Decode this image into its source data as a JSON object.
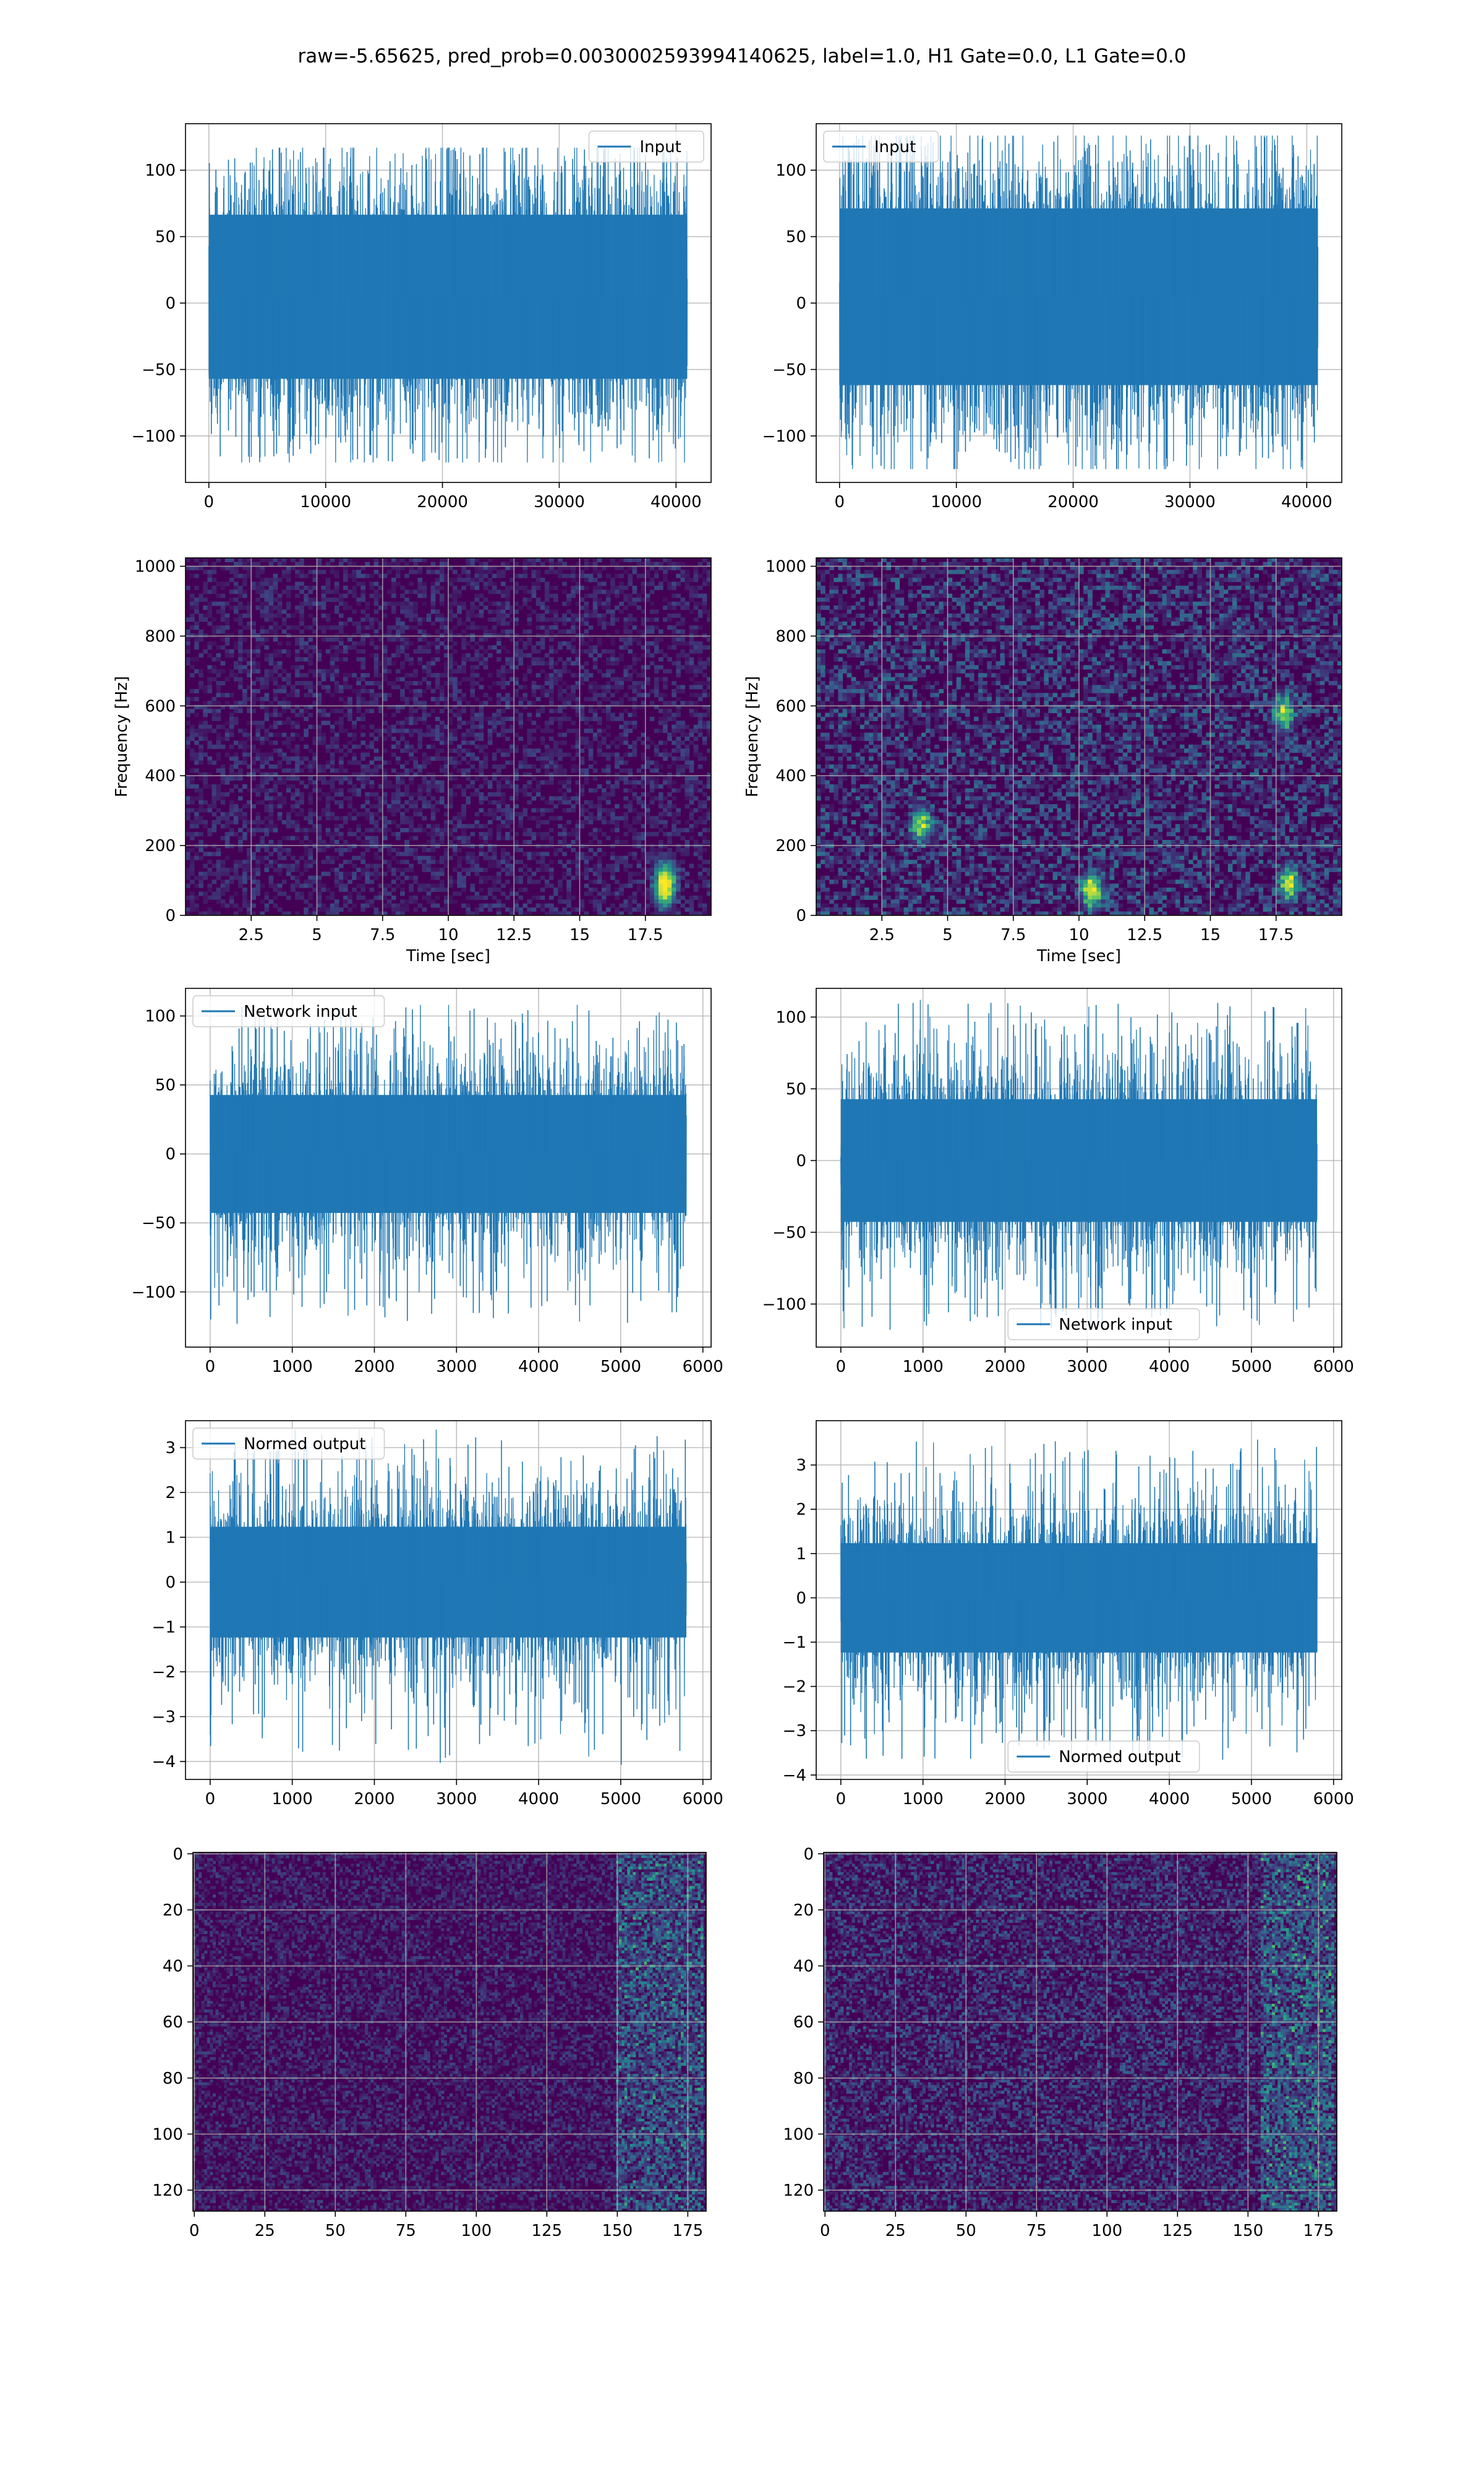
{
  "figure": {
    "title": "raw=-5.65625, pred_prob=0.0030002593994140625, label=1.0, H1 Gate=0.0, L1 Gate=0.0"
  },
  "colors": {
    "line": "#1f77b4",
    "grid": "#b0b0b0",
    "viridis_low": "#440154",
    "viridis_mid": "#21918c",
    "viridis_high": "#fde725"
  },
  "chart_data": [
    {
      "id": "input-h1",
      "type": "line",
      "row": 0,
      "col": 0,
      "legend": "Input",
      "legend_loc": "upper right",
      "xlim": [
        -2000,
        43000
      ],
      "ylim": [
        -135,
        135
      ],
      "xticks": [
        0,
        10000,
        20000,
        30000,
        40000
      ],
      "yticks": [
        -100,
        -50,
        0,
        50,
        100
      ],
      "n_points": 40960,
      "band": [
        -60,
        70
      ],
      "extremes": [
        -120,
        117
      ],
      "grid": true,
      "xlabel": "",
      "ylabel": ""
    },
    {
      "id": "input-l1",
      "type": "line",
      "row": 0,
      "col": 1,
      "legend": "Input",
      "legend_loc": "upper left",
      "xlim": [
        -2000,
        43000
      ],
      "ylim": [
        -135,
        135
      ],
      "xticks": [
        0,
        10000,
        20000,
        30000,
        40000
      ],
      "yticks": [
        -100,
        -50,
        0,
        50,
        100
      ],
      "n_points": 40960,
      "band": [
        -65,
        75
      ],
      "extremes": [
        -125,
        126
      ],
      "grid": true,
      "xlabel": "",
      "ylabel": ""
    },
    {
      "id": "spectrogram-h1",
      "type": "heatmap",
      "row": 1,
      "col": 0,
      "xlim": [
        0,
        20
      ],
      "ylim": [
        0,
        1024
      ],
      "xticks": [
        2.5,
        5.0,
        7.5,
        10.0,
        12.5,
        15.0,
        17.5
      ],
      "yticks": [
        0,
        200,
        400,
        600,
        800,
        1000
      ],
      "xlabel": "Time [sec]",
      "ylabel": "Frequency [Hz]",
      "grid": true,
      "colormap": "viridis",
      "intensity": 0.22,
      "hotspots": [
        {
          "x": 18.2,
          "y": 70,
          "v": 0.8
        },
        {
          "x": 18.3,
          "y": 110,
          "v": 0.6
        }
      ]
    },
    {
      "id": "spectrogram-l1",
      "type": "heatmap",
      "row": 1,
      "col": 1,
      "xlim": [
        0,
        20
      ],
      "ylim": [
        0,
        1024
      ],
      "xticks": [
        2.5,
        5.0,
        7.5,
        10.0,
        12.5,
        15.0,
        17.5
      ],
      "yticks": [
        0,
        200,
        400,
        600,
        800,
        1000
      ],
      "xlabel": "Time [sec]",
      "ylabel": "Frequency [Hz]",
      "grid": true,
      "colormap": "viridis",
      "intensity": 0.38,
      "hotspots": [
        {
          "x": 18.0,
          "y": 90,
          "v": 0.8
        },
        {
          "x": 10.5,
          "y": 70,
          "v": 0.9
        },
        {
          "x": 4.0,
          "y": 260,
          "v": 0.7
        },
        {
          "x": 17.8,
          "y": 580,
          "v": 0.7
        }
      ]
    },
    {
      "id": "network-input-h1",
      "type": "line",
      "row": 2,
      "col": 0,
      "legend": "Network input",
      "legend_loc": "upper left",
      "xlim": [
        -300,
        6100
      ],
      "ylim": [
        -140,
        120
      ],
      "xticks": [
        0,
        1000,
        2000,
        3000,
        4000,
        5000,
        6000
      ],
      "yticks": [
        -100,
        -50,
        0,
        50,
        100
      ],
      "n_points": 5800,
      "band": [
        -45,
        45
      ],
      "extremes": [
        -125,
        108
      ],
      "grid": true,
      "xlabel": "",
      "ylabel": ""
    },
    {
      "id": "network-input-l1",
      "type": "line",
      "row": 2,
      "col": 1,
      "legend": "Network input",
      "legend_loc": "lower center",
      "xlim": [
        -300,
        6100
      ],
      "ylim": [
        -130,
        120
      ],
      "xticks": [
        0,
        1000,
        2000,
        3000,
        4000,
        5000,
        6000
      ],
      "yticks": [
        -100,
        -50,
        0,
        50,
        100
      ],
      "n_points": 5800,
      "band": [
        -45,
        45
      ],
      "extremes": [
        -118,
        112
      ],
      "grid": true,
      "xlabel": "",
      "ylabel": ""
    },
    {
      "id": "normed-output-h1",
      "type": "line",
      "row": 3,
      "col": 0,
      "legend": "Normed output",
      "legend_loc": "upper left",
      "xlim": [
        -300,
        6100
      ],
      "ylim": [
        -4.4,
        3.6
      ],
      "xticks": [
        0,
        1000,
        2000,
        3000,
        4000,
        5000,
        6000
      ],
      "yticks": [
        -4,
        -3,
        -2,
        -1,
        0,
        1,
        2,
        3
      ],
      "n_points": 5800,
      "band": [
        -1.3,
        1.3
      ],
      "extremes": [
        -4.1,
        3.4
      ],
      "grid": true,
      "xlabel": "",
      "ylabel": ""
    },
    {
      "id": "normed-output-l1",
      "type": "line",
      "row": 3,
      "col": 1,
      "legend": "Normed output",
      "legend_loc": "lower center",
      "xlim": [
        -300,
        6100
      ],
      "ylim": [
        -4.1,
        4.0
      ],
      "xticks": [
        0,
        1000,
        2000,
        3000,
        4000,
        5000,
        6000
      ],
      "yticks": [
        -4,
        -3,
        -2,
        -1,
        0,
        1,
        2,
        3
      ],
      "n_points": 5800,
      "band": [
        -1.3,
        1.3
      ],
      "extremes": [
        -3.7,
        3.6
      ],
      "grid": true,
      "xlabel": "",
      "ylabel": ""
    },
    {
      "id": "feature-map-h1",
      "type": "heatmap",
      "row": 4,
      "col": 0,
      "xlim": [
        -0.5,
        181.5
      ],
      "ylim": [
        127.5,
        -0.5
      ],
      "xticks": [
        0,
        25,
        50,
        75,
        100,
        125,
        150,
        175
      ],
      "yticks": [
        0,
        20,
        40,
        60,
        80,
        100,
        120
      ],
      "grid": true,
      "colormap": "viridis",
      "intensity": 0.22,
      "hot_band": [
        150,
        180
      ],
      "xlabel": "",
      "ylabel": ""
    },
    {
      "id": "feature-map-l1",
      "type": "heatmap",
      "row": 4,
      "col": 1,
      "xlim": [
        -0.5,
        181.5
      ],
      "ylim": [
        127.5,
        -0.5
      ],
      "xticks": [
        0,
        25,
        50,
        75,
        100,
        125,
        150,
        175
      ],
      "yticks": [
        0,
        20,
        40,
        60,
        80,
        100,
        120
      ],
      "grid": true,
      "colormap": "viridis",
      "intensity": 0.32,
      "hot_band": [
        155,
        180
      ],
      "xlabel": "",
      "ylabel": ""
    }
  ]
}
